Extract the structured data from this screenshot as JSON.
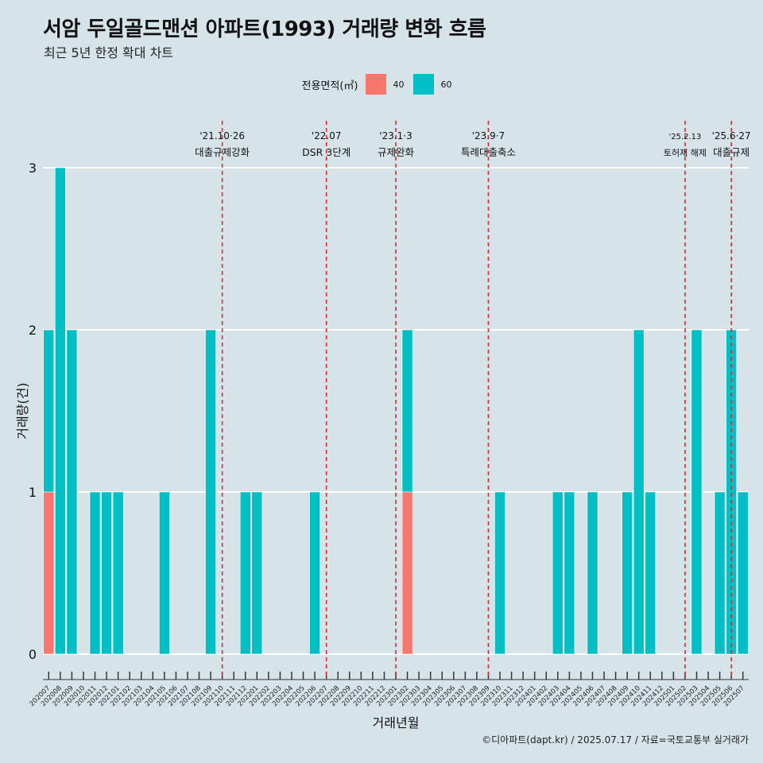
{
  "title": "서암 두일골드맨션 아파트(1993) 거래량 변화 흐름",
  "subtitle": "최근 5년 한정 확대 차트",
  "caption": "©디아파트(dapt.kr) / 2025.07.17 / 자료=국토교통부 실거래가",
  "legend": {
    "title": "전용면적(㎡)",
    "items": [
      {
        "label": "40",
        "color": "#f8766d"
      },
      {
        "label": "60",
        "color": "#00bfc4"
      }
    ]
  },
  "chart_data": {
    "type": "bar",
    "stacked": true,
    "xlabel": "거래년월",
    "ylabel": "거래량(건)",
    "ylim": [
      0,
      3
    ],
    "yticks": [
      0,
      1,
      2,
      3
    ],
    "grid": "horizontal",
    "legend_position": "top",
    "categories": [
      "202007",
      "202008",
      "202009",
      "202010",
      "202011",
      "202012",
      "202101",
      "202102",
      "202103",
      "202104",
      "202105",
      "202106",
      "202107",
      "202108",
      "202109",
      "202110",
      "202111",
      "202112",
      "202201",
      "202202",
      "202203",
      "202204",
      "202205",
      "202206",
      "202207",
      "202208",
      "202209",
      "202210",
      "202211",
      "202212",
      "202301",
      "202302",
      "202303",
      "202304",
      "202305",
      "202306",
      "202307",
      "202308",
      "202309",
      "202310",
      "202311",
      "202312",
      "202401",
      "202402",
      "202403",
      "202404",
      "202405",
      "202406",
      "202407",
      "202408",
      "202409",
      "202410",
      "202411",
      "202412",
      "202501",
      "202502",
      "202503",
      "202504",
      "202505",
      "202506",
      "202507"
    ],
    "series": [
      {
        "name": "40",
        "color": "#f8766d",
        "values": [
          1,
          0,
          0,
          0,
          0,
          0,
          0,
          0,
          0,
          0,
          0,
          0,
          0,
          0,
          0,
          0,
          0,
          0,
          0,
          0,
          0,
          0,
          0,
          0,
          0,
          0,
          0,
          0,
          0,
          0,
          0,
          1,
          0,
          0,
          0,
          0,
          0,
          0,
          0,
          0,
          0,
          0,
          0,
          0,
          0,
          0,
          0,
          0,
          0,
          0,
          0,
          0,
          0,
          0,
          0,
          0,
          0,
          0,
          0,
          0,
          0
        ]
      },
      {
        "name": "60",
        "color": "#00bfc4",
        "values": [
          1,
          3,
          2,
          0,
          1,
          1,
          1,
          0,
          0,
          0,
          1,
          0,
          0,
          0,
          2,
          0,
          0,
          1,
          1,
          0,
          0,
          0,
          0,
          1,
          0,
          0,
          0,
          0,
          0,
          0,
          0,
          1,
          0,
          0,
          0,
          0,
          0,
          0,
          0,
          1,
          0,
          0,
          0,
          0,
          1,
          1,
          0,
          1,
          0,
          0,
          1,
          2,
          1,
          0,
          0,
          0,
          2,
          0,
          1,
          2,
          1
        ]
      }
    ],
    "annotations": [
      {
        "at": "202110",
        "date": "'21.10·26",
        "text": "대출규제강화"
      },
      {
        "at": "202207",
        "date": "'22.07",
        "text": "DSR 3단계"
      },
      {
        "at": "202301",
        "date": "'23.1·3",
        "text": "규제완화"
      },
      {
        "at": "202309",
        "date": "'23.9·7",
        "text": "특례대출축소"
      },
      {
        "at": "202502",
        "date": "'25.2.13",
        "text": "토허제 해제"
      },
      {
        "at": "202506",
        "date": "'25.6·27",
        "text": "대출규제"
      }
    ]
  }
}
